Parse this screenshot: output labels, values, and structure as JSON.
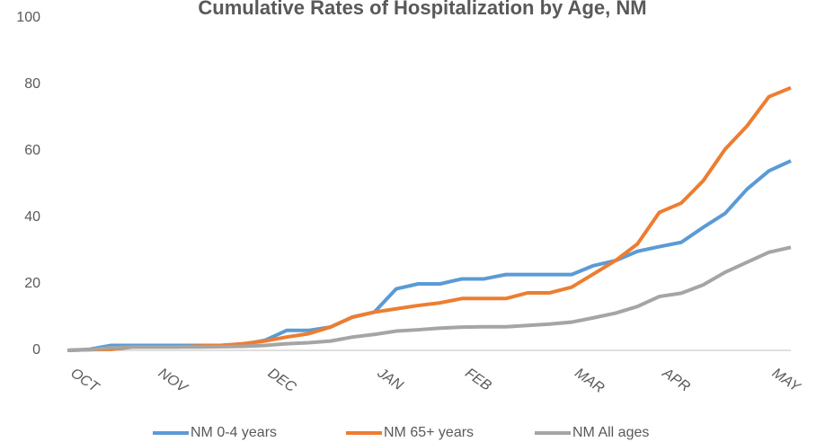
{
  "chart_data": {
    "type": "line",
    "title": "Cumulative Rates of Hospitalization by Age, NM",
    "categories": [
      "OCT",
      null,
      null,
      null,
      "NOV",
      null,
      null,
      null,
      null,
      "DEC",
      null,
      null,
      null,
      null,
      "JAN",
      null,
      null,
      null,
      "FEB",
      null,
      null,
      null,
      null,
      "MAR",
      null,
      null,
      null,
      "APR",
      null,
      null,
      null,
      null,
      "MAY",
      null
    ],
    "ylim": [
      0,
      100
    ],
    "yticks": [
      0,
      20,
      40,
      60,
      80,
      100
    ],
    "grid": false,
    "legend": "bottom",
    "series": [
      {
        "name": "NM 0-4 years",
        "color": "#5b9bd5",
        "values": [
          0,
          0.3,
          1.5,
          1.5,
          1.5,
          1.5,
          1.5,
          1.5,
          1.8,
          3,
          6,
          6,
          7,
          10,
          11.5,
          18.5,
          20,
          20,
          21.5,
          21.5,
          22.8,
          22.8,
          22.8,
          22.8,
          25.5,
          27,
          29.8,
          31.2,
          32.5,
          37,
          41.2,
          48.5,
          54,
          57
        ]
      },
      {
        "name": "NM 65+ years",
        "color": "#ed7d31",
        "values": [
          0,
          0.2,
          0.3,
          1,
          1,
          1,
          1.3,
          1.5,
          2,
          2.8,
          4,
          5,
          7,
          10,
          11.5,
          12.5,
          13.5,
          14.3,
          15.6,
          15.6,
          15.6,
          17.3,
          17.3,
          19,
          23,
          27,
          32,
          41.5,
          44.3,
          51,
          60.5,
          67.5,
          76.3,
          79
        ]
      },
      {
        "name": "NM All ages",
        "color": "#a5a5a5",
        "values": [
          0,
          0.2,
          0.8,
          1,
          1,
          1,
          1,
          1.1,
          1.2,
          1.5,
          2,
          2.3,
          2.8,
          4,
          4.8,
          5.8,
          6.2,
          6.7,
          7,
          7.1,
          7.1,
          7.5,
          7.9,
          8.5,
          9.8,
          11.2,
          13.2,
          16.2,
          17.2,
          19.7,
          23.5,
          26.5,
          29.5,
          31
        ]
      }
    ]
  }
}
